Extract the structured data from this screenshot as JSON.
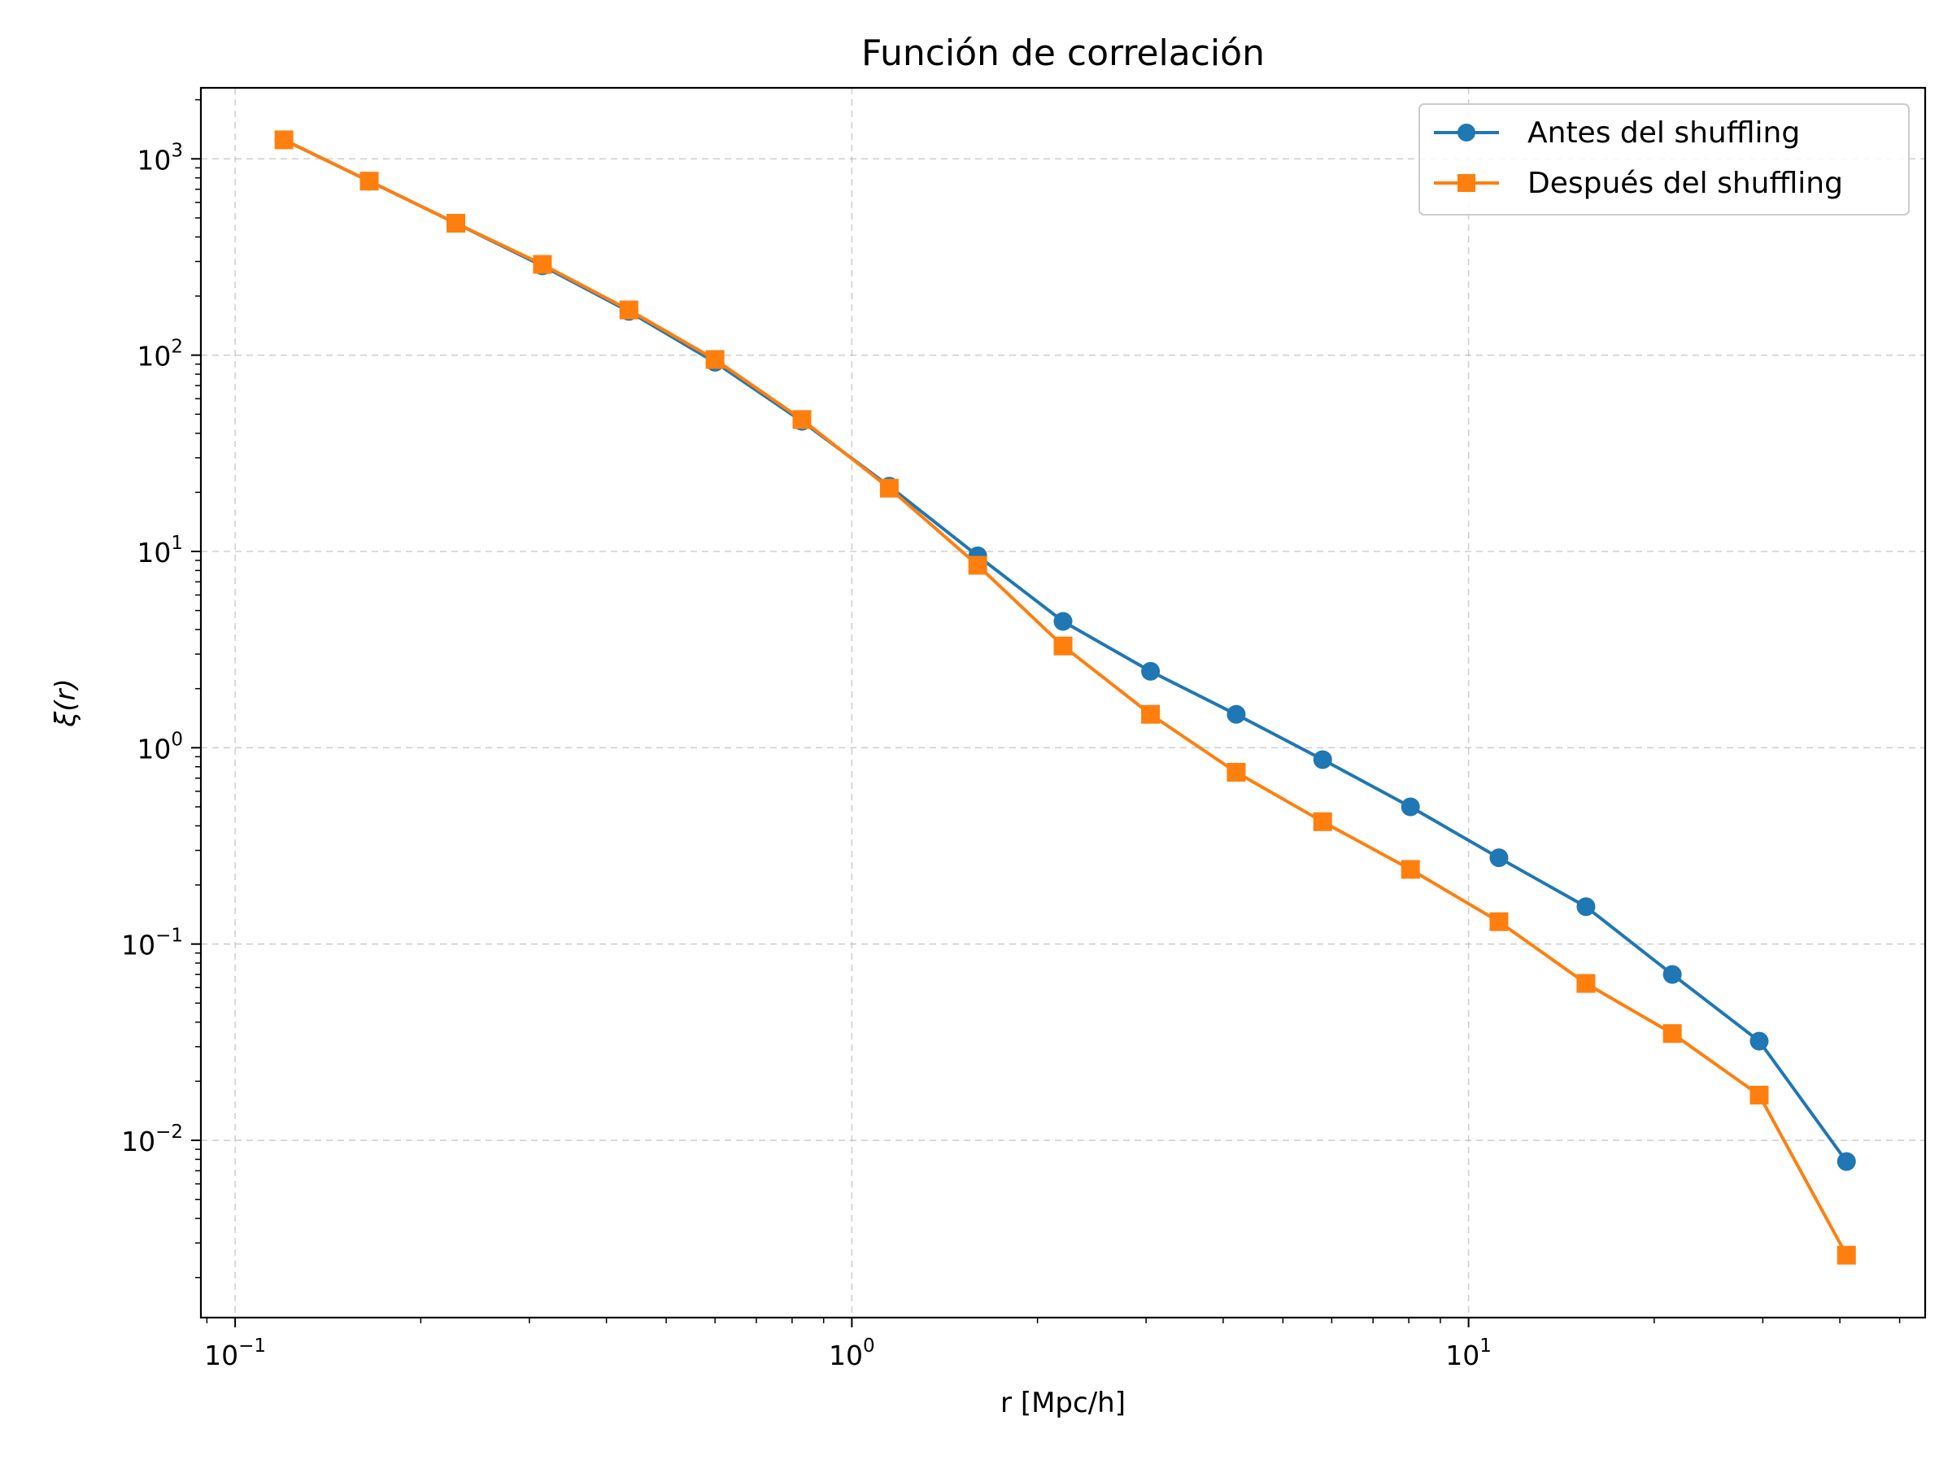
{
  "chart_data": {
    "type": "line",
    "title": "Función de correlación",
    "xlabel": "r [Mpc/h]",
    "ylabel": "ξ(r)",
    "xscale": "log",
    "yscale": "log",
    "xlim": [
      0.088,
      55
    ],
    "ylim": [
      0.00125,
      2300
    ],
    "grid": true,
    "legend_position": "top-right",
    "x_ticks": [
      {
        "value": 0.1,
        "base": "10",
        "exp": "−1"
      },
      {
        "value": 1,
        "base": "10",
        "exp": "0"
      },
      {
        "value": 10,
        "base": "10",
        "exp": "1"
      }
    ],
    "y_ticks": [
      {
        "value": 0.01,
        "base": "10",
        "exp": "−2"
      },
      {
        "value": 0.1,
        "base": "10",
        "exp": "−1"
      },
      {
        "value": 1,
        "base": "10",
        "exp": "0"
      },
      {
        "value": 10,
        "base": "10",
        "exp": "1"
      },
      {
        "value": 100,
        "base": "10",
        "exp": "2"
      },
      {
        "value": 1000,
        "base": "10",
        "exp": "3"
      }
    ],
    "x": [
      0.12,
      0.165,
      0.228,
      0.315,
      0.435,
      0.6,
      0.83,
      1.15,
      1.6,
      2.2,
      3.05,
      4.2,
      5.8,
      8.05,
      11.2,
      15.5,
      21.4,
      29.6,
      41.0
    ],
    "series": [
      {
        "name": "Antes del shuffling",
        "color": "#1f77b4",
        "marker": "circle",
        "values": [
          1250,
          770,
          470,
          285,
          167,
          92,
          46,
          21.5,
          9.5,
          4.4,
          2.45,
          1.48,
          0.87,
          0.5,
          0.275,
          0.155,
          0.07,
          0.032,
          0.0078
        ]
      },
      {
        "name": "Después del shuffling",
        "color": "#ff7f0e",
        "marker": "square",
        "values": [
          1250,
          770,
          470,
          290,
          170,
          95,
          47,
          21,
          8.5,
          3.3,
          1.48,
          0.75,
          0.42,
          0.24,
          0.13,
          0.063,
          0.035,
          0.017,
          0.0026
        ]
      }
    ]
  }
}
